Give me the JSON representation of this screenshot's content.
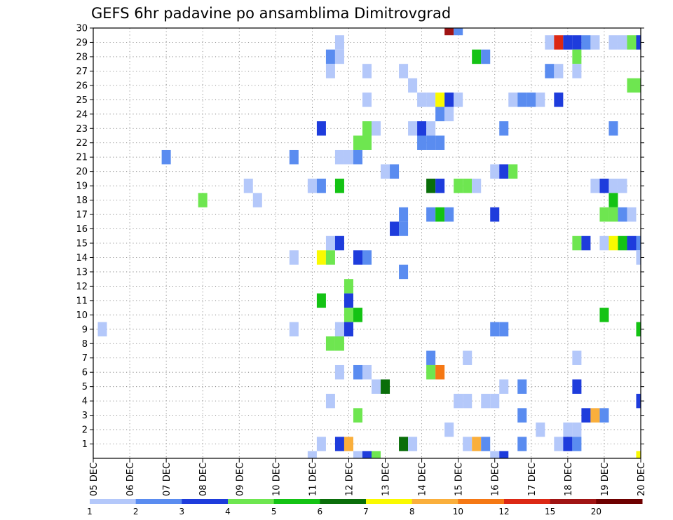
{
  "chart_data": {
    "type": "heatmap",
    "title": "GEFS 6hr padavine po ansamblima Dimitrovgrad",
    "x_ticks": [
      "05 DEC",
      "06 DEC",
      "07 DEC",
      "08 DEC",
      "09 DEC",
      "10 DEC",
      "11 DEC",
      "12 DEC",
      "13 DEC",
      "14 DEC",
      "15 DEC",
      "16 DEC",
      "17 DEC",
      "18 DEC",
      "19 DEC",
      "20 DEC"
    ],
    "x_unit": "6-hour steps from 05 DEC 00Z",
    "x_range": [
      0,
      60
    ],
    "y_ticks": [
      1,
      2,
      3,
      4,
      5,
      6,
      7,
      8,
      9,
      10,
      11,
      12,
      13,
      14,
      15,
      16,
      17,
      18,
      19,
      20,
      21,
      22,
      23,
      24,
      25,
      26,
      27,
      28,
      29,
      30
    ],
    "y_range": [
      0,
      30
    ],
    "grid": true,
    "legend_placement": "bottom",
    "legend": {
      "colors": [
        "#b4c8fa",
        "#5a8cf0",
        "#1e3cdc",
        "#6ee650",
        "#14c314",
        "#0a6e0a",
        "#fafa00",
        "#faaf3c",
        "#f57814",
        "#dc2814",
        "#a01414",
        "#6e0000"
      ],
      "labels": [
        "1",
        "2",
        "3",
        "4",
        "5",
        "6",
        "7",
        "8",
        "10",
        "12",
        "15",
        "20"
      ]
    },
    "cells": [
      [
        39,
        30,
        10
      ],
      [
        40,
        30,
        1
      ],
      [
        27,
        29,
        0
      ],
      [
        50,
        29,
        0
      ],
      [
        51,
        29,
        9
      ],
      [
        52,
        29,
        2
      ],
      [
        53,
        29,
        2
      ],
      [
        54,
        29,
        1
      ],
      [
        55,
        29,
        0
      ],
      [
        57,
        29,
        0
      ],
      [
        58,
        29,
        0
      ],
      [
        59,
        29,
        3
      ],
      [
        60,
        29,
        2
      ],
      [
        26,
        28,
        1
      ],
      [
        27,
        28,
        0
      ],
      [
        42,
        28,
        4
      ],
      [
        43,
        28,
        1
      ],
      [
        53,
        28,
        3
      ],
      [
        26,
        27,
        0
      ],
      [
        30,
        27,
        0
      ],
      [
        34,
        27,
        0
      ],
      [
        50,
        27,
        1
      ],
      [
        51,
        27,
        0
      ],
      [
        53,
        27,
        0
      ],
      [
        35,
        26,
        0
      ],
      [
        59,
        26,
        3
      ],
      [
        60,
        26,
        3
      ],
      [
        30,
        25,
        0
      ],
      [
        36,
        25,
        0
      ],
      [
        37,
        25,
        0
      ],
      [
        38,
        25,
        6
      ],
      [
        39,
        25,
        2
      ],
      [
        40,
        25,
        0
      ],
      [
        46,
        25,
        0
      ],
      [
        47,
        25,
        1
      ],
      [
        48,
        25,
        1
      ],
      [
        49,
        25,
        0
      ],
      [
        51,
        25,
        2
      ],
      [
        38,
        24,
        1
      ],
      [
        39,
        24,
        0
      ],
      [
        25,
        23,
        2
      ],
      [
        30,
        23,
        3
      ],
      [
        31,
        23,
        0
      ],
      [
        35,
        23,
        0
      ],
      [
        36,
        23,
        2
      ],
      [
        37,
        23,
        0
      ],
      [
        45,
        23,
        1
      ],
      [
        57,
        23,
        1
      ],
      [
        29,
        22,
        3
      ],
      [
        30,
        22,
        3
      ],
      [
        36,
        22,
        1
      ],
      [
        37,
        22,
        1
      ],
      [
        38,
        22,
        1
      ],
      [
        8,
        21,
        1
      ],
      [
        22,
        21,
        1
      ],
      [
        27,
        21,
        0
      ],
      [
        28,
        21,
        0
      ],
      [
        29,
        21,
        1
      ],
      [
        32,
        20,
        0
      ],
      [
        33,
        20,
        1
      ],
      [
        44,
        20,
        0
      ],
      [
        45,
        20,
        2
      ],
      [
        46,
        20,
        3
      ],
      [
        17,
        19,
        0
      ],
      [
        24,
        19,
        0
      ],
      [
        25,
        19,
        1
      ],
      [
        27,
        19,
        4
      ],
      [
        37,
        19,
        5
      ],
      [
        38,
        19,
        2
      ],
      [
        40,
        19,
        3
      ],
      [
        41,
        19,
        3
      ],
      [
        42,
        19,
        0
      ],
      [
        55,
        19,
        0
      ],
      [
        56,
        19,
        2
      ],
      [
        57,
        19,
        0
      ],
      [
        58,
        19,
        0
      ],
      [
        12,
        18,
        3
      ],
      [
        18,
        18,
        0
      ],
      [
        57,
        18,
        4
      ],
      [
        34,
        17,
        1
      ],
      [
        37,
        17,
        1
      ],
      [
        38,
        17,
        4
      ],
      [
        39,
        17,
        1
      ],
      [
        44,
        17,
        2
      ],
      [
        56,
        17,
        3
      ],
      [
        57,
        17,
        3
      ],
      [
        58,
        17,
        1
      ],
      [
        59,
        17,
        0
      ],
      [
        33,
        16,
        2
      ],
      [
        34,
        16,
        1
      ],
      [
        26,
        15,
        0
      ],
      [
        27,
        15,
        2
      ],
      [
        53,
        15,
        3
      ],
      [
        54,
        15,
        2
      ],
      [
        56,
        15,
        0
      ],
      [
        57,
        15,
        6
      ],
      [
        58,
        15,
        4
      ],
      [
        59,
        15,
        2
      ],
      [
        60,
        15,
        1
      ],
      [
        22,
        14,
        0
      ],
      [
        25,
        14,
        6
      ],
      [
        26,
        14,
        3
      ],
      [
        29,
        14,
        2
      ],
      [
        30,
        14,
        1
      ],
      [
        60,
        14,
        0
      ],
      [
        34,
        13,
        1
      ],
      [
        28,
        12,
        3
      ],
      [
        25,
        11,
        4
      ],
      [
        28,
        11,
        2
      ],
      [
        28,
        10,
        3
      ],
      [
        29,
        10,
        4
      ],
      [
        56,
        10,
        4
      ],
      [
        1,
        9,
        0
      ],
      [
        22,
        9,
        0
      ],
      [
        27,
        9,
        0
      ],
      [
        28,
        9,
        2
      ],
      [
        44,
        9,
        1
      ],
      [
        45,
        9,
        1
      ],
      [
        60,
        9,
        4
      ],
      [
        26,
        8,
        3
      ],
      [
        27,
        8,
        3
      ],
      [
        37,
        7,
        1
      ],
      [
        41,
        7,
        0
      ],
      [
        53,
        7,
        0
      ],
      [
        27,
        6,
        0
      ],
      [
        29,
        6,
        1
      ],
      [
        30,
        6,
        0
      ],
      [
        37,
        6,
        3
      ],
      [
        38,
        6,
        8
      ],
      [
        31,
        5,
        0
      ],
      [
        32,
        5,
        5
      ],
      [
        45,
        5,
        0
      ],
      [
        47,
        5,
        1
      ],
      [
        53,
        5,
        2
      ],
      [
        26,
        4,
        0
      ],
      [
        40,
        4,
        0
      ],
      [
        41,
        4,
        0
      ],
      [
        43,
        4,
        0
      ],
      [
        44,
        4,
        0
      ],
      [
        60,
        4,
        2
      ],
      [
        29,
        3,
        3
      ],
      [
        47,
        3,
        1
      ],
      [
        54,
        3,
        2
      ],
      [
        55,
        3,
        7
      ],
      [
        56,
        3,
        1
      ],
      [
        39,
        2,
        0
      ],
      [
        49,
        2,
        0
      ],
      [
        52,
        2,
        0
      ],
      [
        53,
        2,
        0
      ],
      [
        25,
        1,
        0
      ],
      [
        27,
        1,
        2
      ],
      [
        28,
        1,
        7
      ],
      [
        34,
        1,
        5
      ],
      [
        35,
        1,
        0
      ],
      [
        41,
        1,
        0
      ],
      [
        42,
        1,
        7
      ],
      [
        43,
        1,
        1
      ],
      [
        47,
        1,
        1
      ],
      [
        51,
        1,
        0
      ],
      [
        52,
        1,
        2
      ],
      [
        53,
        1,
        1
      ],
      [
        24,
        0,
        0
      ],
      [
        29,
        0,
        0
      ],
      [
        30,
        0,
        2
      ],
      [
        31,
        0,
        3
      ],
      [
        44,
        0,
        0
      ],
      [
        45,
        0,
        2
      ],
      [
        60,
        0,
        6
      ]
    ]
  }
}
